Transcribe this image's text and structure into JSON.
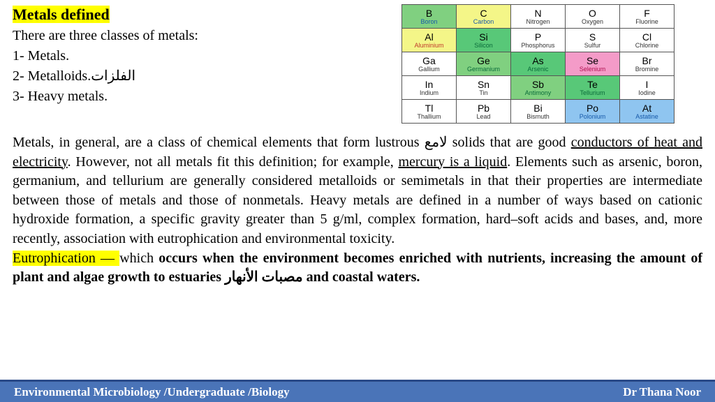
{
  "heading": "Metals defined",
  "intro": "There are three classes of metals:",
  "list": [
    "1- Metals.",
    "2- Metalloids.",
    "3- Heavy metals."
  ],
  "list2_arabic": "الفلزات",
  "periodic": {
    "rows": [
      [
        {
          "sym": "B",
          "name": "Boron",
          "bg": "c-lg",
          "nameColor": "#1558a8"
        },
        {
          "sym": "C",
          "name": "Carbon",
          "bg": "c-ly",
          "nameColor": "#1558a8"
        },
        {
          "sym": "N",
          "name": "Nitrogen",
          "bg": "c-w",
          "nameColor": "#333"
        },
        {
          "sym": "O",
          "name": "Oxygen",
          "bg": "c-w",
          "nameColor": "#333"
        },
        {
          "sym": "F",
          "name": "Fluorine",
          "bg": "c-w",
          "nameColor": "#333"
        }
      ],
      [
        {
          "sym": "Al",
          "name": "Aluminium",
          "bg": "c-ly",
          "nameColor": "#c0392b"
        },
        {
          "sym": "Si",
          "name": "Silicon",
          "bg": "c-g2",
          "nameColor": "#0a6b3a"
        },
        {
          "sym": "P",
          "name": "Phosphorus",
          "bg": "c-w",
          "nameColor": "#333"
        },
        {
          "sym": "S",
          "name": "Sulfur",
          "bg": "c-w",
          "nameColor": "#333"
        },
        {
          "sym": "Cl",
          "name": "Chlorine",
          "bg": "c-w",
          "nameColor": "#333"
        }
      ],
      [
        {
          "sym": "Ga",
          "name": "Gallium",
          "bg": "c-w",
          "nameColor": "#333"
        },
        {
          "sym": "Ge",
          "name": "Germanium",
          "bg": "c-lg",
          "nameColor": "#0a6b3a"
        },
        {
          "sym": "As",
          "name": "Arsenic",
          "bg": "c-g2",
          "nameColor": "#0a6b3a"
        },
        {
          "sym": "Se",
          "name": "Selenium",
          "bg": "c-pk",
          "nameColor": "#b01050"
        },
        {
          "sym": "Br",
          "name": "Bromine",
          "bg": "c-w",
          "nameColor": "#333"
        }
      ],
      [
        {
          "sym": "In",
          "name": "Indium",
          "bg": "c-w",
          "nameColor": "#333"
        },
        {
          "sym": "Sn",
          "name": "Tin",
          "bg": "c-w",
          "nameColor": "#333"
        },
        {
          "sym": "Sb",
          "name": "Antimony",
          "bg": "c-lg",
          "nameColor": "#0a6b3a"
        },
        {
          "sym": "Te",
          "name": "Tellurium",
          "bg": "c-g2",
          "nameColor": "#0a6b3a"
        },
        {
          "sym": "I",
          "name": "Iodine",
          "bg": "c-w",
          "nameColor": "#333"
        }
      ],
      [
        {
          "sym": "Tl",
          "name": "Thallium",
          "bg": "c-w",
          "nameColor": "#333"
        },
        {
          "sym": "Pb",
          "name": "Lead",
          "bg": "c-w",
          "nameColor": "#333"
        },
        {
          "sym": "Bi",
          "name": "Bismuth",
          "bg": "c-w",
          "nameColor": "#333"
        },
        {
          "sym": "Po",
          "name": "Polonium",
          "bg": "c-bl",
          "nameColor": "#1558a8"
        },
        {
          "sym": "At",
          "name": "Astatine",
          "bg": "c-bl",
          "nameColor": "#1558a8"
        }
      ]
    ]
  },
  "para1_pre": " Metals, in general, are a class of chemical elements that form lustrous ",
  "para1_arabic": "لامع",
  "para1_mid1": "  solids that are good ",
  "para1_u1": "conductors of heat and electricity",
  "para1_mid2": ". However, not all metals fit this definition; for example, ",
  "para1_u2": "mercury is a liquid",
  "para1_mid3": ". Elements such as arsenic, boron, germanium, and tellurium are generally considered metalloids or semimetals in that their properties are intermediate between those of metals and those of nonmetals. Heavy metals are defined in a number of ways based on cationic hydroxide formation, a specific gravity greater than 5 g/ml, complex formation, hard–soft acids and bases, and, more recently, association with eutrophication and environmental toxicity.",
  "eutro_label": "Eutrophication — ",
  "eutro_which": "which ",
  "eutro_bold1": "occurs when the environment becomes enriched with nutrients, increasing the amount of plant and algae growth to estuaries ",
  "eutro_arabic": "مصبات الأنهار",
  "eutro_bold2": " and coastal waters",
  "eutro_period": ".",
  "footer_left": "Environmental Microbiology /Undergraduate /Biology",
  "footer_right": "Dr Thana Noor"
}
